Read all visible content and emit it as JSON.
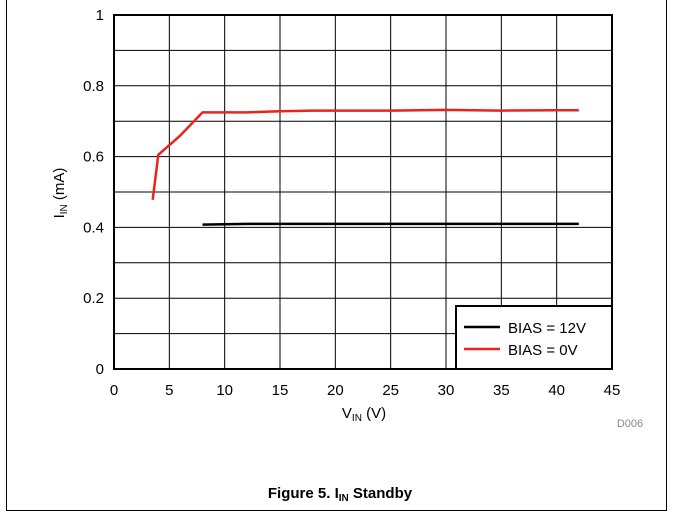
{
  "chart_data": {
    "type": "line",
    "title": "",
    "xlabel": {
      "main": "V",
      "sub": "IN",
      "unit": " (V)"
    },
    "ylabel": {
      "main": "I",
      "sub": "IN",
      "unit": " (mA)"
    },
    "xlim": [
      0,
      45
    ],
    "ylim": [
      0,
      1
    ],
    "xticks": [
      "0",
      "5",
      "10",
      "15",
      "20",
      "25",
      "30",
      "35",
      "40",
      "45"
    ],
    "yticks": [
      "0",
      "0.2",
      "0.4",
      "0.6",
      "0.8",
      "1"
    ],
    "grid": true,
    "legend_position": "bottom-right",
    "series": [
      {
        "name": "BIAS = 12V",
        "color": "#000000",
        "x": [
          8,
          10,
          12,
          15,
          20,
          25,
          30,
          35,
          40,
          42
        ],
        "y": [
          0.408,
          0.409,
          0.41,
          0.41,
          0.41,
          0.41,
          0.41,
          0.41,
          0.41,
          0.41
        ]
      },
      {
        "name": "BIAS = 0V",
        "color": "#e8241c",
        "x": [
          3.5,
          4,
          6,
          8,
          10,
          12,
          15,
          18,
          20,
          25,
          30,
          35,
          40,
          42
        ],
        "y": [
          0.478,
          0.605,
          0.66,
          0.725,
          0.725,
          0.725,
          0.728,
          0.73,
          0.73,
          0.73,
          0.732,
          0.73,
          0.731,
          0.731
        ]
      }
    ]
  },
  "code_label": "D006",
  "caption": {
    "prefix": "Figure 5. I",
    "sub": "IN",
    "suffix": " Standby"
  }
}
